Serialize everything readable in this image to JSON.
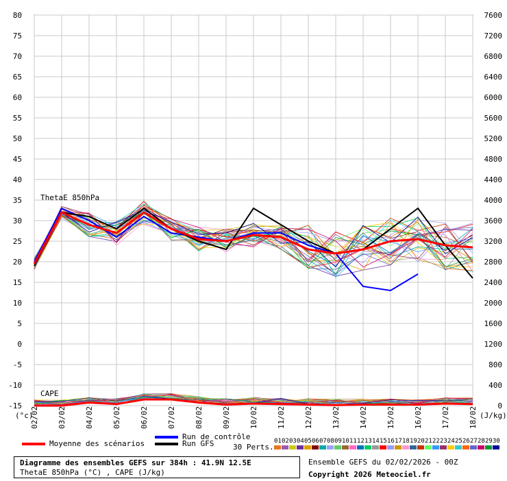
{
  "chart_data": {
    "type": "line",
    "x": [
      "02/02",
      "03/02",
      "04/02",
      "05/02",
      "06/02",
      "07/02",
      "08/02",
      "09/02",
      "10/02",
      "11/02",
      "12/02",
      "13/02",
      "14/02",
      "15/02",
      "16/02",
      "17/02",
      "18/02"
    ],
    "left_ticks": [
      "80",
      "75",
      "70",
      "65",
      "60",
      "55",
      "50",
      "45",
      "40",
      "35",
      "30",
      "25",
      "20",
      "15",
      "10",
      "5",
      "0",
      "-5",
      "-10",
      "-15"
    ],
    "right_ticks": [
      "7600",
      "7200",
      "6800",
      "6400",
      "6000",
      "5600",
      "5200",
      "4800",
      "4400",
      "4000",
      "3600",
      "3200",
      "2800",
      "2400",
      "2000",
      "1600",
      "1200",
      "800",
      "400",
      "0"
    ],
    "ylim_left": [
      -15,
      80
    ],
    "ylim_right": [
      0,
      7600
    ],
    "left_unit": "(°c)",
    "right_unit": "(J/kg)",
    "panel_labels": [
      "ThetaE 850hPa",
      "CAPE"
    ],
    "series": [
      {
        "name": "Moyenne des scénarios",
        "color": "#ff0000",
        "values": [
          19.5,
          32,
          29,
          27,
          32,
          28,
          25.5,
          25,
          26.5,
          26,
          23,
          22,
          23,
          25,
          25.5,
          24,
          23.5
        ]
      },
      {
        "name": "Run de contrôle",
        "color": "#0000ff",
        "values": [
          20,
          33,
          30,
          26,
          31,
          27,
          26,
          25,
          27,
          27,
          24,
          22,
          14,
          13,
          17,
          null,
          null
        ]
      },
      {
        "name": "Run GFS",
        "color": "#000000",
        "values": [
          19,
          32,
          31,
          28,
          33,
          28,
          25,
          23,
          33,
          29,
          25,
          22,
          23,
          28,
          33,
          24,
          16
        ]
      }
    ],
    "cape_mean": [
      0,
      0,
      60,
      30,
      120,
      120,
      60,
      20,
      40,
      30,
      20,
      10,
      20,
      20,
      20,
      40,
      30
    ],
    "grid": true
  },
  "legend": {
    "mean": "Moyenne des scénarios",
    "control": "Run de contrôle",
    "gfs": "Run GFS",
    "perts": "30 Perts."
  },
  "pert_numbers": [
    "01",
    "02",
    "03",
    "04",
    "05",
    "06",
    "07",
    "08",
    "09",
    "10",
    "11",
    "12",
    "13",
    "14",
    "15",
    "16",
    "17",
    "18",
    "19",
    "20",
    "21",
    "22",
    "23",
    "24",
    "25",
    "26",
    "27",
    "28",
    "29",
    "30"
  ],
  "pert_colors": [
    "#e87722",
    "#9b59b6",
    "#cccc00",
    "#7030a0",
    "#e0a000",
    "#800000",
    "#00aaaa",
    "#a0a0ff",
    "#66cc66",
    "#996633",
    "#ff66cc",
    "#0070c0",
    "#00cc66",
    "#999999",
    "#ff0000",
    "#9999ff",
    "#cc9900",
    "#ff99cc",
    "#336699",
    "#cc3300",
    "#66ff66",
    "#3399ff",
    "#993366",
    "#ffcc00",
    "#33cccc",
    "#ff6600",
    "#6666cc",
    "#cc0066",
    "#009933",
    "#000099"
  ],
  "info": {
    "title": "Diagramme des ensembles GEFS sur 384h : 41.9N 12.5E",
    "subtitle": "ThetaE 850hPa (°C) , CAPE (J/kg)",
    "run": "Ensemble GEFS du 02/02/2026 - 00Z",
    "copyright": "Copyright 2026 Meteociel.fr"
  }
}
